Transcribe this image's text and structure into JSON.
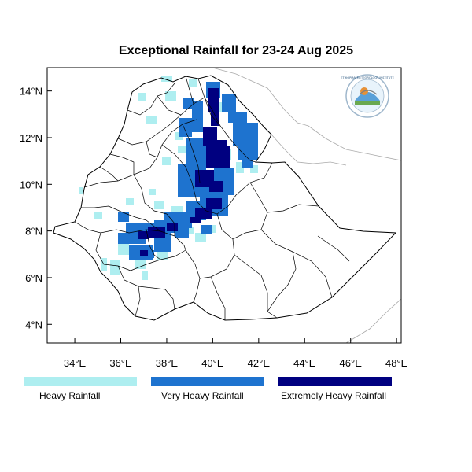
{
  "title": "Exceptional Rainfall for 23-24 Aug 2025",
  "axes": {
    "x_ticks": [
      "34°E",
      "36°E",
      "38°E",
      "40°E",
      "42°E",
      "44°E",
      "46°E",
      "48°E"
    ],
    "y_ticks": [
      "4°N",
      "6°N",
      "8°N",
      "10°N",
      "12°N",
      "14°N"
    ],
    "lon_range": [
      32.8,
      48.2
    ],
    "lat_range": [
      3.2,
      15.0
    ]
  },
  "legend": [
    {
      "label": "Heavy Rainfall",
      "color": "#aeeef0"
    },
    {
      "label": "Very Heavy Rainfall",
      "color": "#1e73cf"
    },
    {
      "label": "Extremely Heavy Rainfall",
      "color": "#000080"
    }
  ],
  "logo": {
    "top_text": "ETHIOPIAN METEOROLOGY INSTITUTE",
    "icon": "meteorology-institute-logo"
  }
}
